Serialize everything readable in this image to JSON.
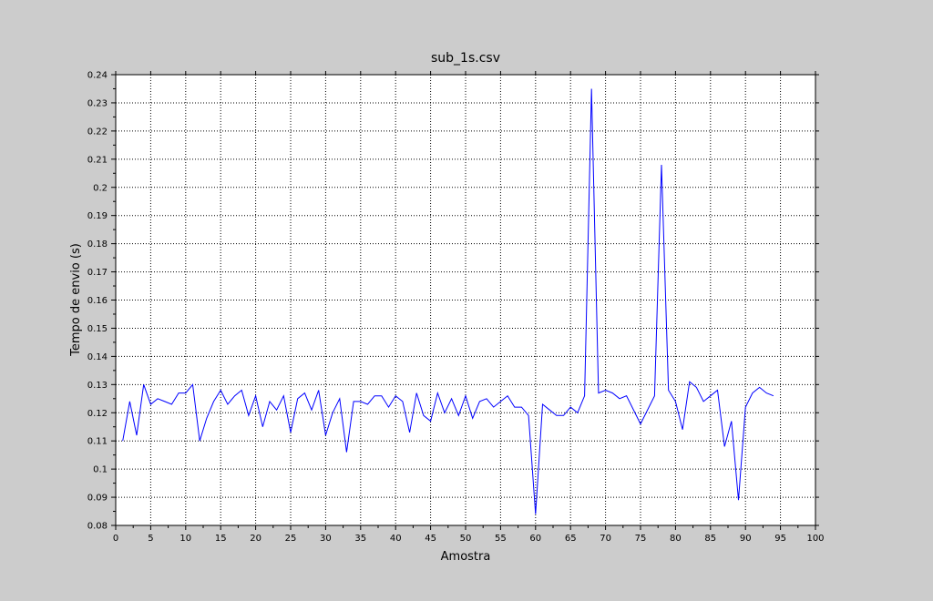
{
  "chart_data": {
    "type": "line",
    "title": "sub_1s.csv",
    "xlabel": "Amostra",
    "ylabel": "Tempo de envio (s)",
    "xlim": [
      0,
      100
    ],
    "ylim": [
      0.08,
      0.24
    ],
    "x_ticks": [
      "0",
      "5",
      "10",
      "15",
      "20",
      "25",
      "30",
      "35",
      "40",
      "45",
      "50",
      "55",
      "60",
      "65",
      "70",
      "75",
      "80",
      "85",
      "90",
      "95",
      "100"
    ],
    "y_ticks": [
      "0.08",
      "0.09",
      "0.1",
      "0.11",
      "0.12",
      "0.13",
      "0.14",
      "0.15",
      "0.16",
      "0.17",
      "0.18",
      "0.19",
      "0.2",
      "0.21",
      "0.22",
      "0.23",
      "0.24"
    ],
    "grid": true,
    "colors": {
      "line": "#0000ff",
      "background": "#cccccc",
      "plot_area": "#ffffff",
      "grid": "#000000"
    },
    "series": [
      {
        "x": [
          1,
          2,
          3,
          4,
          5,
          6,
          7,
          8,
          9,
          10,
          11,
          12,
          13,
          14,
          15,
          16,
          17,
          18,
          19,
          20,
          21,
          22,
          23,
          24,
          25,
          26,
          27,
          28,
          29,
          30,
          31,
          32,
          33,
          34,
          35,
          36,
          37,
          38,
          39,
          40,
          41,
          42,
          43,
          44,
          45,
          46,
          47,
          48,
          49,
          50,
          51,
          52,
          53,
          54,
          55,
          56,
          57,
          58,
          59,
          60,
          61,
          62,
          63,
          64,
          65,
          66,
          67,
          68,
          69,
          70,
          71,
          72,
          73,
          75,
          77,
          78,
          79,
          80,
          81,
          82,
          83,
          84,
          85,
          86,
          87,
          88,
          89,
          90,
          91,
          92,
          93,
          94
        ],
        "values": [
          0.11,
          0.124,
          0.112,
          0.13,
          0.123,
          0.125,
          0.124,
          0.123,
          0.127,
          0.127,
          0.13,
          0.11,
          0.118,
          0.124,
          0.128,
          0.123,
          0.126,
          0.128,
          0.119,
          0.126,
          0.115,
          0.124,
          0.121,
          0.126,
          0.113,
          0.125,
          0.127,
          0.121,
          0.128,
          0.112,
          0.12,
          0.125,
          0.106,
          0.124,
          0.124,
          0.123,
          0.126,
          0.126,
          0.122,
          0.126,
          0.124,
          0.113,
          0.127,
          0.119,
          0.117,
          0.127,
          0.12,
          0.125,
          0.119,
          0.126,
          0.118,
          0.124,
          0.125,
          0.122,
          0.124,
          0.126,
          0.122,
          0.122,
          0.119,
          0.084,
          0.123,
          0.121,
          0.119,
          0.119,
          0.122,
          0.12,
          0.126,
          0.235,
          0.127,
          0.128,
          0.127,
          0.125,
          0.126,
          0.116,
          0.126,
          0.208,
          0.128,
          0.124,
          0.114,
          0.131,
          0.129,
          0.124,
          0.126,
          0.128,
          0.108,
          0.117,
          0.089,
          0.122,
          0.127,
          0.129,
          0.127,
          0.126
        ]
      }
    ]
  }
}
